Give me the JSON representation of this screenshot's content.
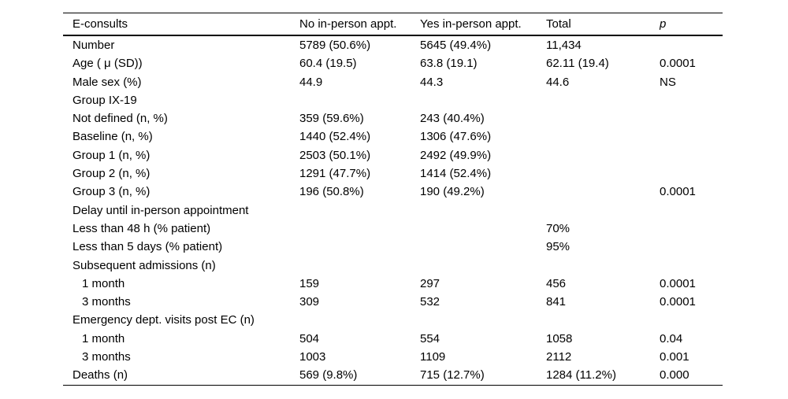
{
  "table": {
    "columns": [
      "E-consults",
      "No in-person appt.",
      "Yes in-person appt.",
      "Total",
      "p"
    ],
    "rows": [
      {
        "label": "Number",
        "indent": false,
        "no_appt": "5789 (50.6%)",
        "yes_appt": "5645 (49.4%)",
        "total": "11,434",
        "p": ""
      },
      {
        "label": "Age ( μ (SD))",
        "indent": false,
        "no_appt": "60.4 (19.5)",
        "yes_appt": "63.8 (19.1)",
        "total": "62.11 (19.4)",
        "p": "0.0001"
      },
      {
        "label": "Male sex (%)",
        "indent": false,
        "no_appt": "44.9",
        "yes_appt": "44.3",
        "total": "44.6",
        "p": "NS"
      },
      {
        "label": "Group IX-19",
        "indent": false,
        "no_appt": "",
        "yes_appt": "",
        "total": "",
        "p": ""
      },
      {
        "label": "Not defined (n, %)",
        "indent": false,
        "no_appt": "359 (59.6%)",
        "yes_appt": "243 (40.4%)",
        "total": "",
        "p": ""
      },
      {
        "label": "Baseline (n, %)",
        "indent": false,
        "no_appt": "1440 (52.4%)",
        "yes_appt": "1306 (47.6%)",
        "total": "",
        "p": ""
      },
      {
        "label": "Group 1 (n, %)",
        "indent": false,
        "no_appt": "2503 (50.1%)",
        "yes_appt": "2492 (49.9%)",
        "total": "",
        "p": ""
      },
      {
        "label": "Group 2 (n, %)",
        "indent": false,
        "no_appt": "1291 (47.7%)",
        "yes_appt": "1414 (52.4%)",
        "total": "",
        "p": ""
      },
      {
        "label": "Group 3 (n, %)",
        "indent": false,
        "no_appt": "196 (50.8%)",
        "yes_appt": "190 (49.2%)",
        "total": "",
        "p": "0.0001"
      },
      {
        "label": "Delay until in-person appointment",
        "indent": false,
        "no_appt": "",
        "yes_appt": "",
        "total": "",
        "p": ""
      },
      {
        "label": "Less than 48 h (% patient)",
        "indent": false,
        "no_appt": "",
        "yes_appt": "",
        "total": "70%",
        "p": ""
      },
      {
        "label": "Less than 5 days (% patient)",
        "indent": false,
        "no_appt": "",
        "yes_appt": "",
        "total": "95%",
        "p": ""
      },
      {
        "label": "Subsequent admissions (n)",
        "indent": false,
        "no_appt": "",
        "yes_appt": "",
        "total": "",
        "p": ""
      },
      {
        "label": "1 month",
        "indent": true,
        "no_appt": "159",
        "yes_appt": "297",
        "total": "456",
        "p": "0.0001"
      },
      {
        "label": "3 months",
        "indent": true,
        "no_appt": "309",
        "yes_appt": "532",
        "total": "841",
        "p": "0.0001"
      },
      {
        "label": "Emergency dept. visits post EC (n)",
        "indent": false,
        "no_appt": "",
        "yes_appt": "",
        "total": "",
        "p": ""
      },
      {
        "label": "1 month",
        "indent": true,
        "no_appt": "504",
        "yes_appt": "554",
        "total": "1058",
        "p": "0.04"
      },
      {
        "label": "3 months",
        "indent": true,
        "no_appt": "1003",
        "yes_appt": "1109",
        "total": "2112",
        "p": "0.001"
      },
      {
        "label": "Deaths (n)",
        "indent": false,
        "no_appt": "569 (9.8%)",
        "yes_appt": "715 (12.7%)",
        "total": "1284 (11.2%)",
        "p": "0.000"
      }
    ]
  }
}
